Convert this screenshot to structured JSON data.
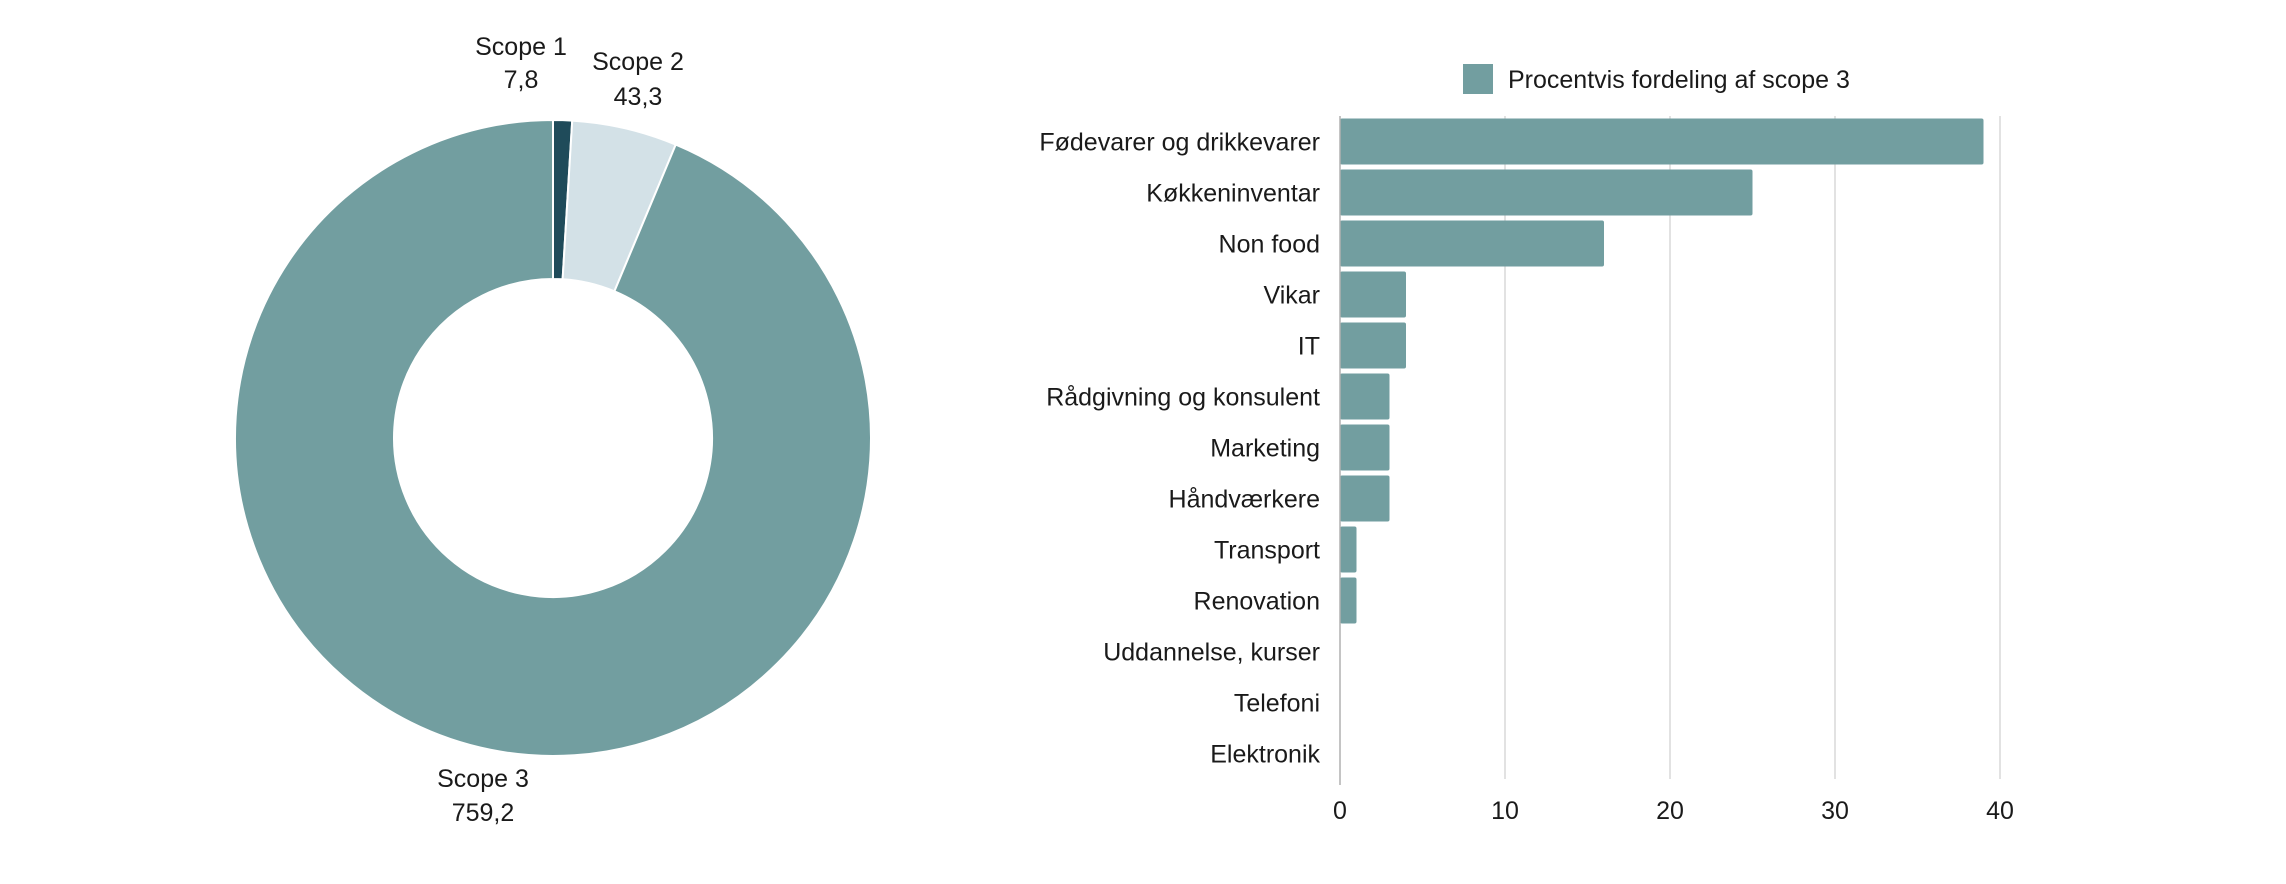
{
  "chart_data": [
    {
      "type": "pie",
      "donut": true,
      "slices": [
        {
          "label": "Scope 1",
          "value": 7.8,
          "value_text": "7,8",
          "color": "#1f4b5a"
        },
        {
          "label": "Scope 2",
          "value": 43.3,
          "value_text": "43,3",
          "color": "#d3e1e7"
        },
        {
          "label": "Scope 3",
          "value": 759.2,
          "value_text": "759,2",
          "color": "#729ea0"
        }
      ]
    },
    {
      "type": "bar",
      "orientation": "horizontal",
      "series": [
        {
          "name": "Procentvis fordeling af scope 3",
          "color": "#729ea0"
        }
      ],
      "categories": [
        "Fødevarer og drikkevarer",
        "Køkkeninventar",
        "Non food",
        "Vikar",
        "IT",
        "Rådgivning og konsulent",
        "Marketing",
        "Håndværkere",
        "Transport",
        "Renovation",
        "Uddannelse, kurser",
        "Telefoni",
        "Elektronik"
      ],
      "values": [
        39,
        25,
        16,
        4,
        4,
        3,
        3,
        3,
        1,
        1,
        0,
        0,
        0
      ],
      "xlim": [
        0,
        40
      ],
      "xticks": [
        "0",
        "10",
        "20",
        "30",
        "40"
      ],
      "legend_position": "top",
      "grid": "vertical"
    }
  ]
}
